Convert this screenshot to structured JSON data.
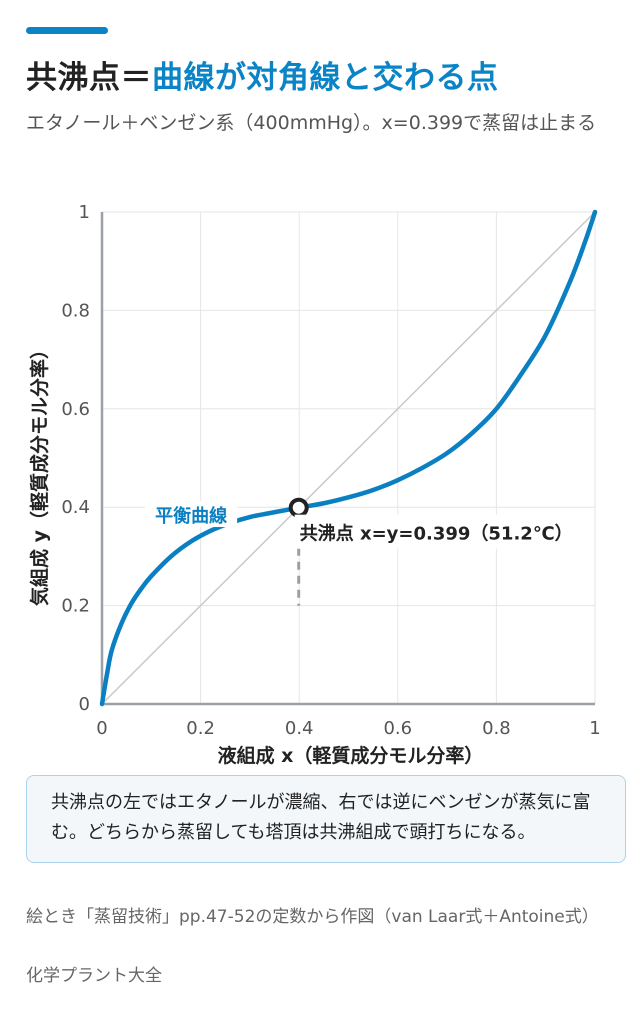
{
  "header": {
    "title_black": "共沸点＝",
    "title_blue": "曲線が対角線と交わる点",
    "subtitle": "エタノール＋ベンゼン系（400mmHg）。x=0.399で蒸留は止まる"
  },
  "colors": {
    "accent": "#0a84c6",
    "curve": "#0a7fc2",
    "diagonal": "#c9c9c9",
    "grid": "#e6e6e6",
    "axis": "#9aa0a6",
    "dark": "#222222"
  },
  "chart_data": {
    "type": "line",
    "xlabel": "液組成 x（軽質成分モル分率）",
    "ylabel": "気組成 y（軽質成分モル分率）",
    "xlim": [
      0,
      1
    ],
    "ylim": [
      0,
      1
    ],
    "x_ticks": [
      "0",
      "0.2",
      "0.4",
      "0.6",
      "0.8",
      "1"
    ],
    "y_ticks": [
      "0",
      "0.2",
      "0.4",
      "0.6",
      "0.8",
      "1"
    ],
    "grid": true,
    "series": [
      {
        "name": "平衡曲線",
        "x": [
          0,
          0.01,
          0.02,
          0.04,
          0.06,
          0.08,
          0.1,
          0.14,
          0.18,
          0.22,
          0.26,
          0.3,
          0.34,
          0.399,
          0.45,
          0.5,
          0.55,
          0.6,
          0.65,
          0.7,
          0.75,
          0.8,
          0.85,
          0.9,
          0.95,
          0.98,
          1.0
        ],
        "y": [
          0,
          0.06,
          0.11,
          0.165,
          0.205,
          0.235,
          0.26,
          0.3,
          0.33,
          0.352,
          0.368,
          0.38,
          0.388,
          0.399,
          0.408,
          0.42,
          0.435,
          0.455,
          0.48,
          0.51,
          0.55,
          0.6,
          0.67,
          0.75,
          0.86,
          0.94,
          1.0
        ]
      }
    ],
    "diagonal": true,
    "azeotrope": {
      "x": 0.399,
      "y": 0.399,
      "label": "共沸点 x=y=0.399（51.2℃）"
    }
  },
  "note": "共沸点の左ではエタノールが濃縮、右では逆にベンゼンが蒸気に富む。どちらから蒸留しても塔頂は共沸組成で頭打ちになる。",
  "source": "絵とき「蒸留技術」pp.47-52の定数から作図（van Laar式＋Antoine式）",
  "org": "化学プラント大全"
}
